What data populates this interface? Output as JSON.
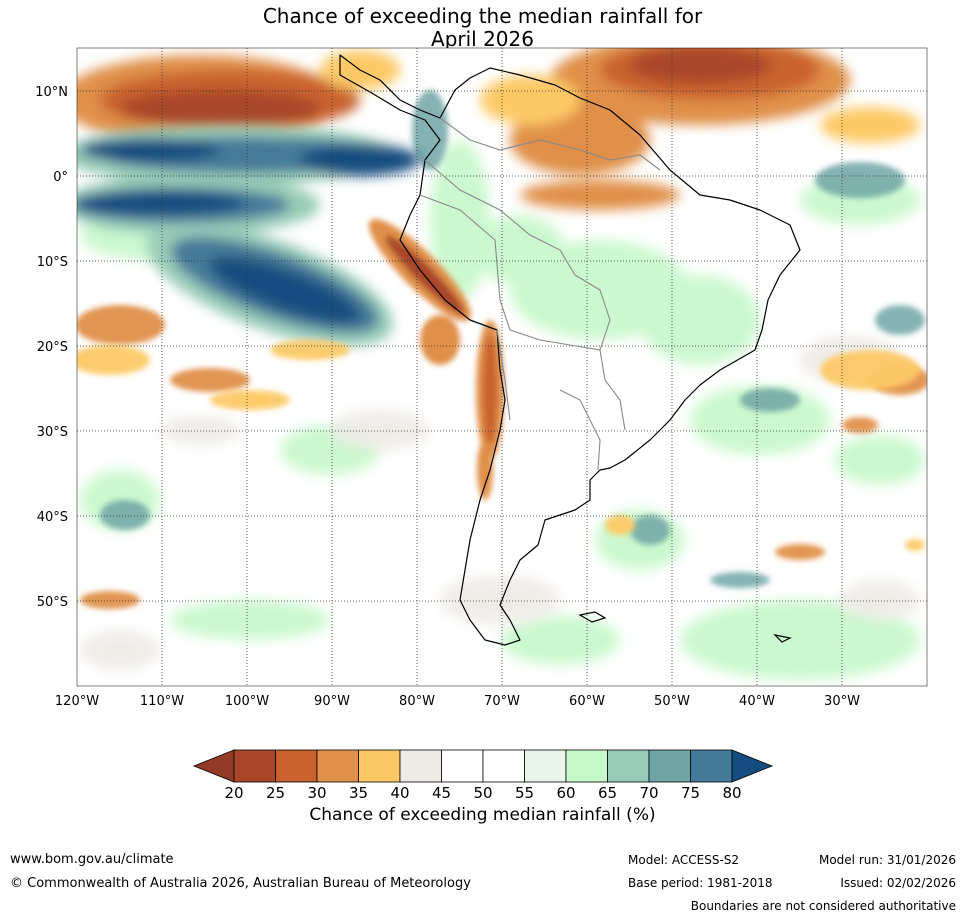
{
  "title": {
    "line1": "Chance of exceeding the median rainfall for",
    "line2": "April 2026"
  },
  "map": {
    "region": "South America",
    "lat_labels": [
      "10°N",
      "0°",
      "10°S",
      "20°S",
      "30°S",
      "40°S",
      "50°S"
    ],
    "lon_labels": [
      "120°W",
      "110°W",
      "100°W",
      "90°W",
      "80°W",
      "70°W",
      "60°W",
      "50°W",
      "40°W",
      "30°W"
    ],
    "lat_range": [
      -60,
      15
    ],
    "lon_range": [
      -120,
      -20
    ]
  },
  "colorbar": {
    "label": "Chance of exceeding median rainfall (%)",
    "ticks": [
      "20",
      "25",
      "30",
      "35",
      "40",
      "45",
      "50",
      "55",
      "60",
      "65",
      "70",
      "75",
      "80"
    ],
    "colors": [
      "#a9462a",
      "#c9622f",
      "#e0904a",
      "#fdc966",
      "#eeebe6",
      "#ffffff",
      "#ffffff",
      "#e8f5e8",
      "#c6f8c9",
      "#99ccb8",
      "#6fa5a5",
      "#447a99"
    ],
    "low_extend_color": "#933b26",
    "high_extend_color": "#154d80"
  },
  "footer": {
    "website": "www.bom.gov.au/climate",
    "copyright": "© Commonwealth of Australia 2026, Australian Bureau of Meteorology",
    "model": "Model: ACCESS-S2",
    "base_period": "Base period: 1981-2018",
    "model_run": "Model run: 31/01/2026",
    "issued": "Issued: 02/02/2026",
    "boundaries_note": "Boundaries are not considered authoritative"
  }
}
